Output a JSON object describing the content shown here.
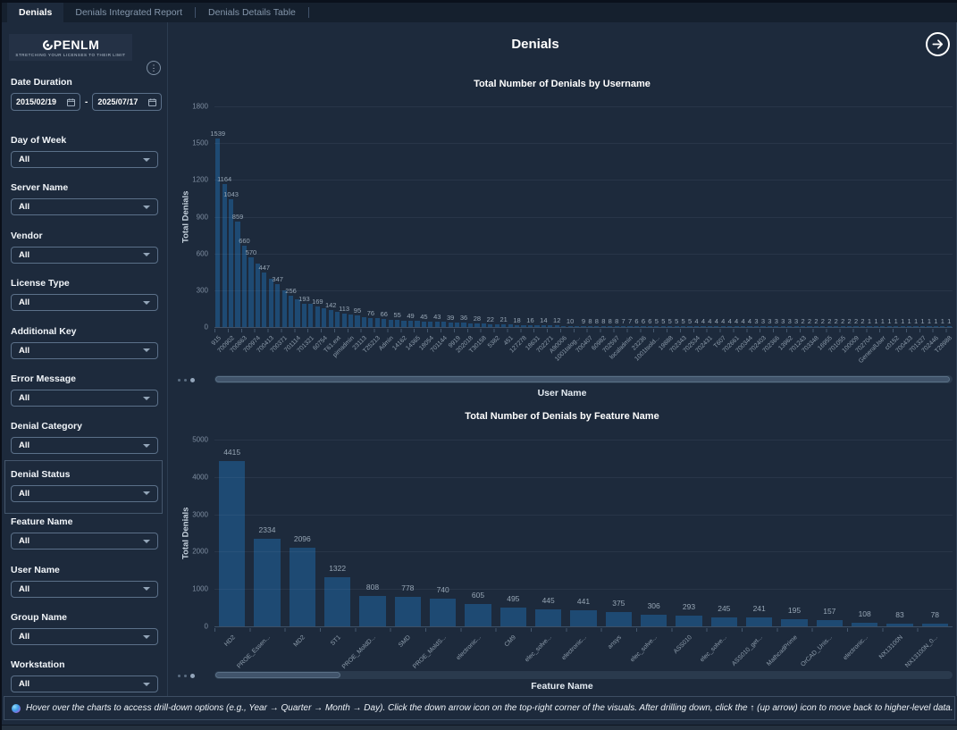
{
  "tabs": [
    {
      "label": "Denials",
      "active": true
    },
    {
      "label": "Denials Integrated Report",
      "active": false
    },
    {
      "label": "Denials Details Table",
      "active": false
    }
  ],
  "logo": {
    "brand": "PENLM",
    "tagline": "STRETCHING YOUR LICENSES TO THEIR LIMIT"
  },
  "sidebar": {
    "date_filter": {
      "label": "Date Duration",
      "start": "2015/02/19",
      "end": "2025/07/17",
      "separator": "-"
    },
    "filters": [
      {
        "label": "Day of Week",
        "value": "All"
      },
      {
        "label": "Server Name",
        "value": "All"
      },
      {
        "label": "Vendor",
        "value": "All"
      },
      {
        "label": "License Type",
        "value": "All"
      },
      {
        "label": "Additional Key",
        "value": "All"
      },
      {
        "label": "Error Message",
        "value": "All"
      },
      {
        "label": "Denial Category",
        "value": "All"
      },
      {
        "label": "Denial Status",
        "value": "All",
        "boxed": true
      },
      {
        "label": "Feature Name",
        "value": "All"
      },
      {
        "label": "User Name",
        "value": "All"
      },
      {
        "label": "Group Name",
        "value": "All"
      },
      {
        "label": "Workstation",
        "value": "All"
      }
    ]
  },
  "header": {
    "title": "Denials"
  },
  "chart_data": [
    {
      "type": "bar",
      "title": "Total Number of Denials by Username",
      "xlabel": "User Name",
      "ylabel": "Total Denials",
      "ylim": [
        0,
        1800
      ],
      "yticks": [
        0,
        300,
        600,
        900,
        1200,
        1500,
        1800
      ],
      "label_step": 2,
      "values": [
        1539,
        1164,
        1043,
        859,
        660,
        570,
        516,
        447,
        395,
        347,
        302,
        256,
        227,
        193,
        189,
        169,
        156,
        142,
        126,
        113,
        101,
        95,
        83,
        76,
        72,
        66,
        58,
        55,
        52,
        49,
        48,
        45,
        45,
        43,
        41,
        39,
        37,
        36,
        29,
        28,
        26,
        22,
        21,
        21,
        20,
        18,
        17,
        16,
        15,
        14,
        13,
        12,
        11,
        10,
        10,
        9,
        8,
        8,
        8,
        8,
        8,
        7,
        7,
        6,
        6,
        6,
        5,
        5,
        5,
        5,
        5,
        5,
        4,
        4,
        4,
        4,
        4,
        4,
        4,
        4,
        4,
        3,
        3,
        3,
        3,
        3,
        3,
        3,
        2,
        2,
        2,
        2,
        2,
        2,
        2,
        2,
        2,
        2,
        1,
        1,
        1,
        1,
        1,
        1,
        1,
        1,
        1,
        1,
        1,
        1,
        1
      ],
      "categories": [
        "915",
        "700902",
        "700863",
        "700974",
        "700413",
        "700371",
        "701114",
        "701321",
        "60754",
        "T61.ext",
        "pimadmin",
        "23113",
        "T25213",
        "Admin",
        "14162",
        "14365",
        "18054",
        "701144",
        "9919",
        "202018",
        "T30158",
        "5382",
        "451",
        "127278",
        "18631",
        "702271",
        "A90006",
        "1001talog...",
        "700407",
        "60982",
        "702597",
        "localadmin",
        "23236",
        "1001tsold...",
        "19888",
        "702343",
        "702534",
        "702431",
        "T607",
        "702661",
        "700344",
        "702403",
        "702366",
        "13962",
        "701243",
        "703348",
        "16955",
        "701055",
        "100009",
        "702704",
        "GeneralUser",
        "c0152",
        "700433",
        "701327",
        "702446",
        "T28988"
      ]
    },
    {
      "type": "bar",
      "title": "Total Number of Denials by Feature Name",
      "xlabel": "Feature Name",
      "ylabel": "Total Denials",
      "ylim": [
        0,
        5000
      ],
      "yticks": [
        0,
        1000,
        2000,
        3000,
        4000,
        5000
      ],
      "label_step": 1,
      "values": [
        4415,
        2334,
        2096,
        1322,
        808,
        778,
        740,
        605,
        495,
        445,
        441,
        375,
        306,
        293,
        245,
        241,
        195,
        157,
        108,
        83,
        78
      ],
      "categories": [
        "HD2",
        "PROE_Essen...",
        "MD2",
        "ST1",
        "PROE_MoldD...",
        "SMD",
        "PROE_MoldS...",
        "electronic...",
        "CM9",
        "elec_solve...",
        "electronic...",
        "ansys",
        "elec_solve...",
        "ASS010",
        "elec_solve...",
        "ASS010_get...",
        "MathcadPrime",
        "OrCAD_Unis...",
        "electronic...",
        "NX13100N",
        "NX13100N_0..."
      ]
    }
  ],
  "footer": {
    "note": "Hover over the charts to access drill-down options (e.g., Year → Quarter → Month → Day). Click the down arrow icon on the top-right corner of the visuals. After drilling down, click the ↑ (up arrow) icon to move back to higher-level data."
  }
}
